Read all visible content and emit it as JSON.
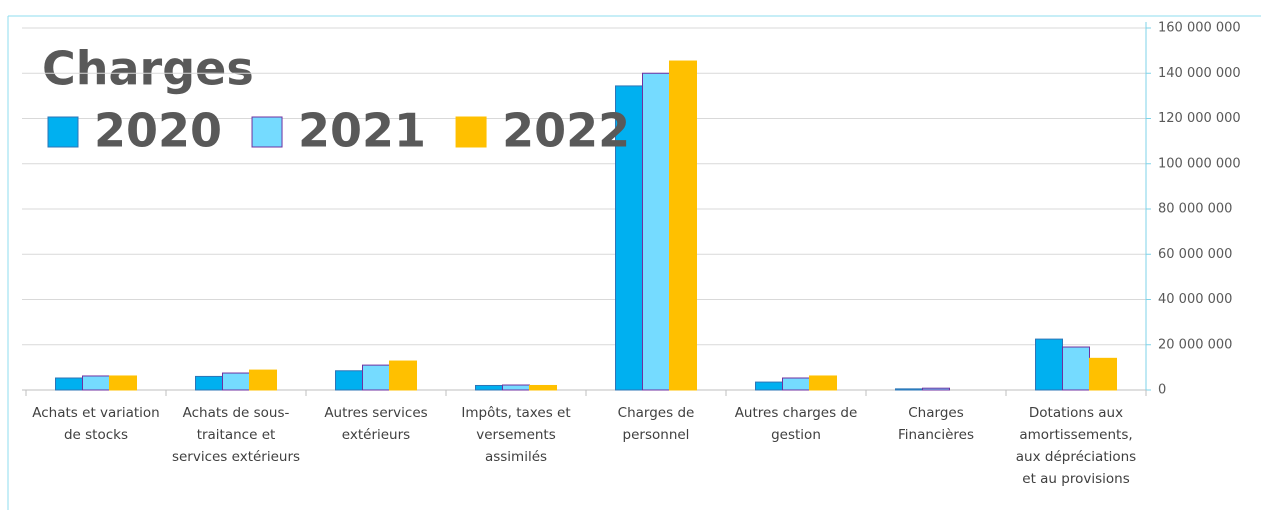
{
  "chart_data": {
    "type": "bar",
    "title": "Charges",
    "categories": [
      "Achats et variation de stocks",
      "Achats de sous-traitance et services extérieurs",
      "Autres services extérieurs",
      "Impôts, taxes et versements assimilés",
      "Charges de personnel",
      "Autres charges de gestion",
      "Charges Financières",
      "Dotations aux amortissements, aux dépréciations et au provisions"
    ],
    "series": [
      {
        "name": "2020",
        "color": "#00b0f0",
        "values": [
          5300000,
          6000000,
          8500000,
          2000000,
          134400000,
          3500000,
          500000,
          22500000
        ]
      },
      {
        "name": "2021",
        "color": "#75dbff",
        "values": [
          6200000,
          7500000,
          11000000,
          2200000,
          140000000,
          5300000,
          800000,
          19000000
        ]
      },
      {
        "name": "2022",
        "color": "#ffc000",
        "values": [
          6200000,
          8800000,
          12800000,
          2000000,
          145400000,
          6200000,
          0,
          14000000
        ]
      }
    ],
    "ylim": [
      0,
      160000000
    ],
    "yticks": [
      0,
      {
        "value": 20000000,
        "label": "20 000 000"
      },
      {
        "value": 40000000,
        "label": "40 000 000"
      },
      {
        "value": 60000000,
        "label": "60 000 000"
      },
      {
        "value": 80000000,
        "label": "80 000 000"
      },
      {
        "value": 100000000,
        "label": "100 000 000"
      },
      {
        "value": 120000000,
        "label": "120 000 000"
      },
      {
        "value": 140000000,
        "label": "140 000 000"
      },
      {
        "value": 160000000,
        "label": "160 000 000"
      }
    ],
    "grid": true,
    "legend": "top-left",
    "y_axis_side": "right"
  }
}
